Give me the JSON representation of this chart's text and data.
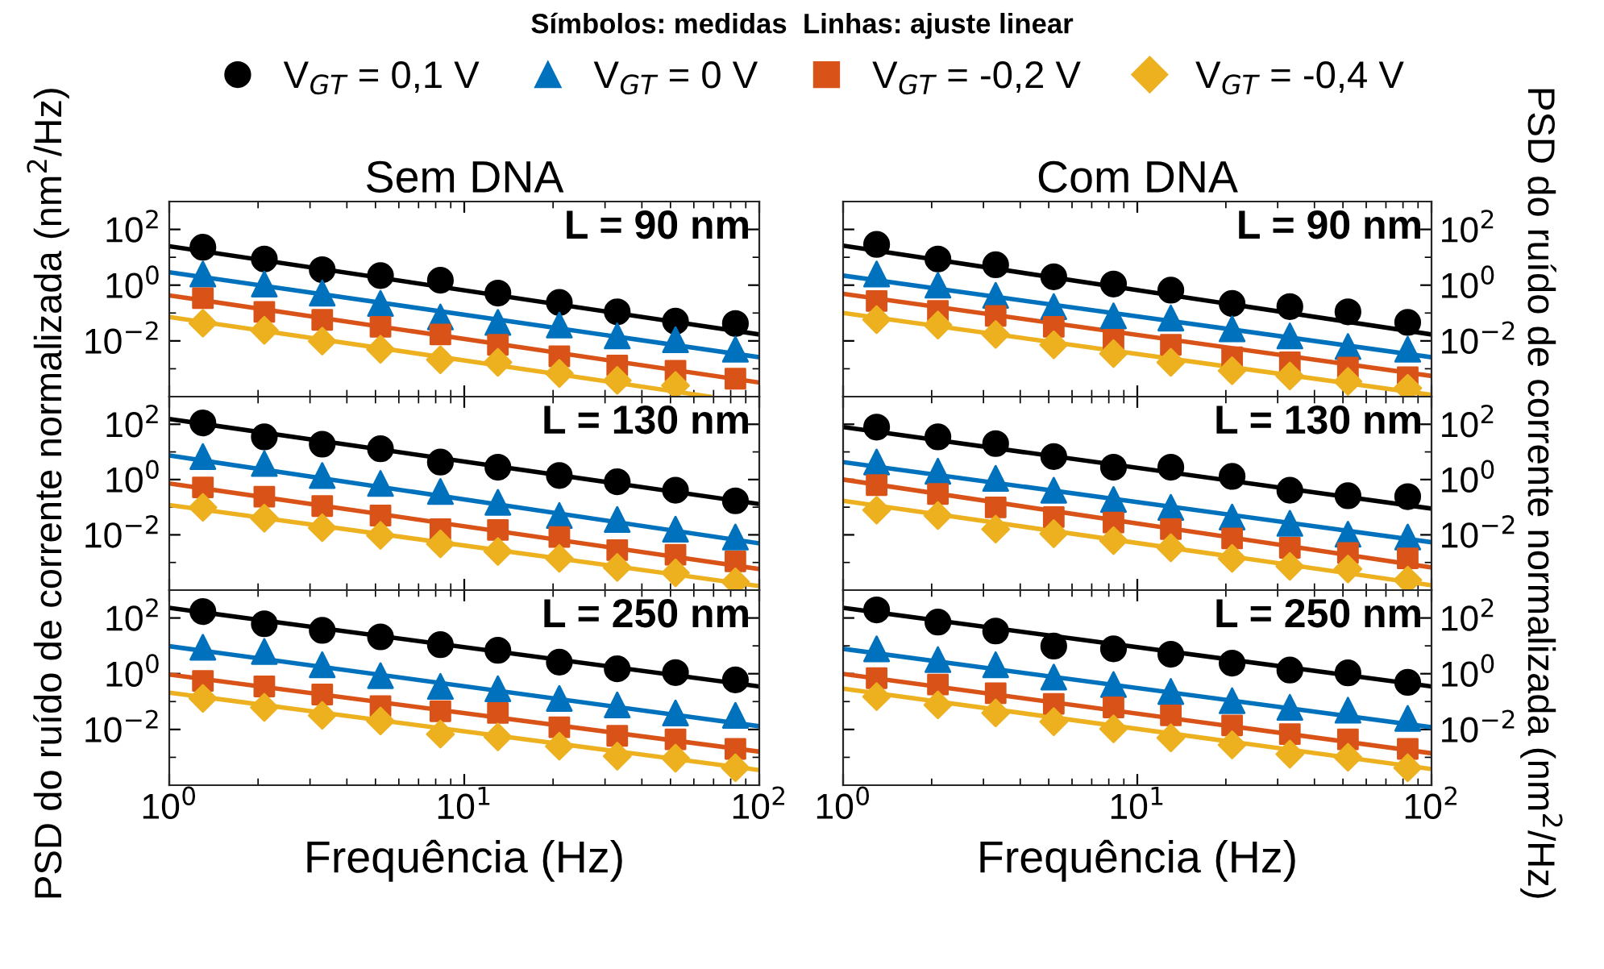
{
  "chart_data": [
    {
      "type": "scatter",
      "title": "Sem DNA",
      "log": "xy",
      "legend": "top",
      "tick_labels": "y",
      "annotations": [
        "Símbolos: medidas  Linhas: ajuste linear",
        "L = 90 nm"
      ],
      "x": [
        1.3,
        2.1,
        3.3,
        5.2,
        8.3,
        13,
        21,
        33,
        52,
        83
      ],
      "xlim": [
        1,
        100
      ],
      "xticks": [
        {
          "value": 1,
          "label": null
        },
        {
          "value": 10,
          "label": null
        },
        {
          "value": 100,
          "label": null
        }
      ],
      "ylim": [
        0.0001,
        1000
      ],
      "yticks": [
        {
          "value": 0.01,
          "label": "10$^{−2}$"
        },
        {
          "value": 1,
          "label": "10$^{0}$"
        },
        {
          "value": 100,
          "label": "10$^{2}$"
        }
      ],
      "series": [
        {
          "name": "V$_{GT}$ = 0,1 V",
          "color": "#000000",
          "marker": "circle",
          "values": [
            23,
            8.7,
            3.6,
            2.2,
            1.5,
            0.52,
            0.24,
            0.11,
            0.051,
            0.042
          ]
        },
        {
          "name": "V$_{GT}$ = 0 V",
          "color": "#0072bd",
          "marker": "triangle",
          "values": [
            2.5,
            1.1,
            0.52,
            0.22,
            0.072,
            0.046,
            0.037,
            0.015,
            0.011,
            0.005
          ]
        },
        {
          "name": "V$_{GT}$ = -0,2 V",
          "color": "#d95319",
          "marker": "square",
          "values": [
            0.34,
            0.11,
            0.057,
            0.032,
            0.017,
            0.0072,
            0.0028,
            0.0013,
            0.00085,
            0.00044
          ]
        },
        {
          "name": "V$_{GT}$ = -0,4 V",
          "color": "#edb120",
          "marker": "diamond",
          "values": [
            0.043,
            0.024,
            0.0098,
            0.005,
            0.0021,
            0.0017,
            0.00068,
            0.00038,
            0.00025,
            null
          ]
        },
        {
          "type": "line",
          "color": "#000000",
          "x": [
            1,
            100
          ],
          "values": [
            25,
            0.017
          ]
        },
        {
          "type": "line",
          "color": "#0072bd",
          "x": [
            1,
            100
          ],
          "values": [
            2.9,
            0.0026
          ]
        },
        {
          "type": "line",
          "color": "#d95319",
          "x": [
            1,
            100
          ],
          "values": [
            0.43,
            0.00032
          ]
        },
        {
          "type": "line",
          "color": "#edb120",
          "x": [
            1,
            68
          ],
          "values": [
            0.072,
            0.0001
          ]
        }
      ]
    },
    {
      "type": "scatter",
      "title": "Com DNA",
      "log": "xy",
      "tick_labels": "y",
      "annotations": [
        "L = 90 nm"
      ],
      "x": [
        1.3,
        2.1,
        3.3,
        5.2,
        8.3,
        13,
        21,
        33,
        52,
        83
      ],
      "xlim": [
        1,
        100
      ],
      "xticks": [
        {
          "value": 1,
          "label": null
        },
        {
          "value": 10,
          "label": null
        },
        {
          "value": 100,
          "label": null
        }
      ],
      "ylim": [
        0.0001,
        1000
      ],
      "yticks": [
        {
          "value": 0.01,
          "label": "10$^{−2}$"
        },
        {
          "value": 1,
          "label": "10$^{0}$"
        },
        {
          "value": 100,
          "label": "10$^{2}$"
        }
      ],
      "series": [
        {
          "color": "#000000",
          "marker": "circle",
          "values": [
            29,
            8.7,
            5.4,
            2.0,
            1.1,
            0.66,
            0.22,
            0.17,
            0.11,
            0.046
          ]
        },
        {
          "color": "#0072bd",
          "marker": "triangle",
          "values": [
            2.5,
            1.0,
            0.43,
            0.17,
            0.079,
            0.066,
            0.027,
            0.015,
            0.0063,
            0.005
          ]
        },
        {
          "color": "#d95319",
          "marker": "square",
          "values": [
            0.27,
            0.12,
            0.079,
            0.032,
            0.011,
            0.0072,
            0.0026,
            0.0017,
            0.0011,
            0.0005
          ]
        },
        {
          "color": "#edb120",
          "marker": "diamond",
          "values": [
            0.058,
            0.037,
            0.017,
            0.0072,
            0.0035,
            0.0017,
            0.00085,
            0.00055,
            0.00035,
            0.0002
          ]
        },
        {
          "type": "line",
          "color": "#000000",
          "x": [
            1,
            100
          ],
          "values": [
            26,
            0.017
          ]
        },
        {
          "type": "line",
          "color": "#0072bd",
          "x": [
            1,
            100
          ],
          "values": [
            2.2,
            0.0026
          ]
        },
        {
          "type": "line",
          "color": "#d95319",
          "x": [
            1,
            100
          ],
          "values": [
            0.49,
            0.00055
          ]
        },
        {
          "type": "line",
          "color": "#edb120",
          "x": [
            1,
            100
          ],
          "values": [
            0.1,
            0.000115
          ]
        }
      ]
    },
    {
      "type": "scatter",
      "log": "xy",
      "tick_labels": "y",
      "ylabel": "PSD do ruído de corrente normalizada (nm$^{2}$/Hz)",
      "annotations": [
        "L = 130 nm"
      ],
      "x": [
        1.3,
        2.1,
        3.3,
        5.2,
        8.3,
        13,
        21,
        33,
        52,
        83
      ],
      "xlim": [
        1,
        100
      ],
      "xticks": [
        {
          "value": 1,
          "label": null
        },
        {
          "value": 10,
          "label": null
        },
        {
          "value": 100,
          "label": null
        }
      ],
      "ylim": [
        0.0001,
        1000
      ],
      "yticks": [
        {
          "value": 0.01,
          "label": "10$^{−2}$"
        },
        {
          "value": 1,
          "label": "10$^{0}$"
        },
        {
          "value": 100,
          "label": "10$^{2}$"
        }
      ],
      "series": [
        {
          "color": "#000000",
          "marker": "circle",
          "values": [
            112,
            35,
            19,
            13,
            4.3,
            2.8,
            1.4,
            0.83,
            0.41,
            0.17
          ]
        },
        {
          "color": "#0072bd",
          "marker": "triangle",
          "values": [
            6.8,
            3.8,
            1.4,
            0.72,
            0.37,
            0.15,
            0.05,
            0.036,
            0.016,
            0.0083
          ]
        },
        {
          "color": "#d95319",
          "marker": "square",
          "values": [
            0.52,
            0.24,
            0.11,
            0.05,
            0.016,
            0.015,
            0.0083,
            0.0028,
            0.0019,
            0.0011
          ]
        },
        {
          "color": "#edb120",
          "marker": "diamond",
          "values": [
            0.098,
            0.04,
            0.018,
            0.0095,
            0.0047,
            0.0025,
            0.0014,
            0.00066,
            0.00042,
            0.0002
          ]
        },
        {
          "type": "line",
          "color": "#000000",
          "x": [
            1,
            100
          ],
          "values": [
            155,
            0.13
          ]
        },
        {
          "type": "line",
          "color": "#0072bd",
          "x": [
            1,
            100
          ],
          "values": [
            7.4,
            0.0049
          ]
        },
        {
          "type": "line",
          "color": "#d95319",
          "x": [
            1,
            100
          ],
          "values": [
            0.72,
            0.00058
          ]
        },
        {
          "type": "line",
          "color": "#edb120",
          "x": [
            1,
            100
          ],
          "values": [
            0.12,
            0.00014
          ]
        }
      ]
    },
    {
      "type": "scatter",
      "log": "xy",
      "tick_labels": "y",
      "ylabel": "PSD do ruído de corrente normalizada (nm$^{2}$/Hz)",
      "annotations": [
        "L = 130 nm"
      ],
      "x": [
        1.3,
        2.1,
        3.3,
        5.2,
        8.3,
        13,
        21,
        33,
        52,
        83
      ],
      "xlim": [
        1,
        100
      ],
      "xticks": [
        {
          "value": 1,
          "label": null
        },
        {
          "value": 10,
          "label": null
        },
        {
          "value": 100,
          "label": null
        }
      ],
      "ylim": [
        0.0001,
        1000
      ],
      "yticks": [
        {
          "value": 0.01,
          "label": "10$^{−2}$"
        },
        {
          "value": 1,
          "label": "10$^{0}$"
        },
        {
          "value": 100,
          "label": "10$^{2}$"
        }
      ],
      "series": [
        {
          "color": "#000000",
          "marker": "circle",
          "values": [
            79,
            35,
            20,
            6.8,
            2.8,
            2.8,
            1.3,
            0.41,
            0.26,
            0.24
          ]
        },
        {
          "color": "#0072bd",
          "marker": "triangle",
          "values": [
            4.3,
            2.0,
            1.1,
            0.41,
            0.19,
            0.098,
            0.044,
            0.026,
            0.0105,
            0.0083
          ]
        },
        {
          "color": "#d95319",
          "marker": "square",
          "values": [
            0.63,
            0.3,
            0.098,
            0.044,
            0.028,
            0.016,
            0.0074,
            0.0034,
            0.0022,
            0.0014
          ]
        },
        {
          "color": "#edb120",
          "marker": "diamond",
          "values": [
            0.078,
            0.05,
            0.016,
            0.011,
            0.0062,
            0.0034,
            0.0014,
            0.00072,
            0.00058,
            0.00023
          ]
        },
        {
          "type": "line",
          "color": "#000000",
          "x": [
            1,
            100
          ],
          "values": [
            79,
            0.089
          ]
        },
        {
          "type": "line",
          "color": "#0072bd",
          "x": [
            1,
            100
          ],
          "values": [
            4.3,
            0.0054
          ]
        },
        {
          "type": "line",
          "color": "#d95319",
          "x": [
            1,
            100
          ],
          "values": [
            1.0,
            0.00066
          ]
        },
        {
          "type": "line",
          "color": "#edb120",
          "x": [
            1,
            100
          ],
          "values": [
            0.17,
            0.00015
          ]
        }
      ]
    },
    {
      "type": "scatter",
      "log": "xy",
      "xlabel": "Frequência (Hz)",
      "annotations": [
        "L = 250 nm"
      ],
      "x": [
        1.3,
        2.1,
        3.3,
        5.2,
        8.3,
        13,
        21,
        33,
        52,
        83
      ],
      "xlim": [
        1,
        100
      ],
      "xticks": [
        {
          "value": 1,
          "label": "10$^{0}$"
        },
        {
          "value": 10,
          "label": "10$^{1}$"
        },
        {
          "value": 100,
          "label": "10$^{2}$"
        }
      ],
      "ylim": [
        0.0001,
        1000
      ],
      "yticks": [
        {
          "value": 0.01,
          "label": "10$^{−2}$"
        },
        {
          "value": 1,
          "label": "10$^{0}$"
        },
        {
          "value": 100,
          "label": "10$^{2}$"
        }
      ],
      "series": [
        {
          "color": "#000000",
          "marker": "circle",
          "values": [
            170,
            62,
            36,
            21,
            11,
            6.9,
            2.6,
            1.5,
            1.1,
            0.6
          ]
        },
        {
          "color": "#0072bd",
          "marker": "triangle",
          "values": [
            8.9,
            6.3,
            2.1,
            0.85,
            0.35,
            0.29,
            0.13,
            0.076,
            0.039,
            0.032
          ]
        },
        {
          "color": "#d95319",
          "marker": "square",
          "values": [
            0.55,
            0.35,
            0.18,
            0.069,
            0.045,
            0.039,
            0.012,
            0.0059,
            0.0044,
            0.002
          ]
        },
        {
          "color": "#edb120",
          "marker": "diamond",
          "values": [
            0.13,
            0.062,
            0.032,
            0.02,
            0.0068,
            0.0054,
            0.0025,
            0.0011,
            0.00093,
            0.00042
          ]
        },
        {
          "type": "line",
          "color": "#000000",
          "x": [
            1,
            100
          ],
          "values": [
            230,
            0.35
          ]
        },
        {
          "type": "line",
          "color": "#0072bd",
          "x": [
            1,
            100
          ],
          "values": [
            9.7,
            0.013
          ]
        },
        {
          "type": "line",
          "color": "#d95319",
          "x": [
            1,
            100
          ],
          "values": [
            0.93,
            0.0016
          ]
        },
        {
          "type": "line",
          "color": "#edb120",
          "x": [
            1,
            100
          ],
          "values": [
            0.21,
            0.00035
          ]
        }
      ]
    },
    {
      "type": "scatter",
      "log": "xy",
      "xlabel": "Frequência (Hz)",
      "annotations": [
        "L = 250 nm"
      ],
      "x": [
        1.3,
        2.1,
        3.3,
        5.2,
        8.3,
        13,
        21,
        33,
        52,
        83
      ],
      "xlim": [
        1,
        100
      ],
      "xticks": [
        {
          "value": 1,
          "label": "10$^{0}$"
        },
        {
          "value": 10,
          "label": "10$^{1}$"
        },
        {
          "value": 100,
          "label": "10$^{2}$"
        }
      ],
      "ylim": [
        0.0001,
        1000
      ],
      "yticks": [
        {
          "value": 0.01,
          "label": "10$^{−2}$"
        },
        {
          "value": 1,
          "label": "10$^{0}$"
        },
        {
          "value": 100,
          "label": "10$^{2}$"
        }
      ],
      "series": [
        {
          "color": "#000000",
          "marker": "circle",
          "values": [
            195,
            71,
            34,
            9.8,
            7.8,
            5.0,
            2.4,
            1.35,
            1.07,
            0.49
          ]
        },
        {
          "color": "#0072bd",
          "marker": "triangle",
          "values": [
            7.8,
            3.2,
            2.1,
            0.76,
            0.41,
            0.23,
            0.107,
            0.062,
            0.049,
            0.025
          ]
        },
        {
          "color": "#d95319",
          "marker": "square",
          "values": [
            0.69,
            0.41,
            0.2,
            0.083,
            0.062,
            0.032,
            0.014,
            0.0068,
            0.0044,
            0.002
          ]
        },
        {
          "color": "#edb120",
          "marker": "diamond",
          "values": [
            0.15,
            0.076,
            0.039,
            0.019,
            0.0105,
            0.005,
            0.0028,
            0.0013,
            0.001,
            0.00042
          ]
        },
        {
          "type": "line",
          "color": "#000000",
          "x": [
            1,
            100
          ],
          "values": [
            230,
            0.35
          ]
        },
        {
          "type": "line",
          "color": "#0072bd",
          "x": [
            1,
            100
          ],
          "values": [
            7.8,
            0.012
          ]
        },
        {
          "type": "line",
          "color": "#d95319",
          "x": [
            1,
            100
          ],
          "values": [
            0.98,
            0.0014
          ]
        },
        {
          "type": "line",
          "color": "#edb120",
          "x": [
            1,
            100
          ],
          "values": [
            0.29,
            0.00038
          ]
        }
      ]
    }
  ]
}
